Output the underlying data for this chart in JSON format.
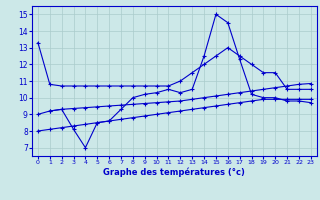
{
  "xlabel": "Graphe des températures (°c)",
  "background_color": "#cce8e8",
  "line_color": "#0000cc",
  "grid_color": "#aacccc",
  "xlim": [
    -0.5,
    23.5
  ],
  "ylim": [
    6.5,
    15.5
  ],
  "xticks": [
    0,
    1,
    2,
    3,
    4,
    5,
    6,
    7,
    8,
    9,
    10,
    11,
    12,
    13,
    14,
    15,
    16,
    17,
    18,
    19,
    20,
    21,
    22,
    23
  ],
  "yticks": [
    7,
    8,
    9,
    10,
    11,
    12,
    13,
    14,
    15
  ],
  "series": [
    {
      "x": [
        0,
        1,
        2,
        3,
        4,
        5,
        6,
        7,
        8,
        9,
        10,
        11,
        12,
        13,
        14,
        15,
        16,
        17,
        18,
        19,
        20,
        21,
        22,
        23
      ],
      "y": [
        13.3,
        10.8,
        10.7,
        10.7,
        10.7,
        10.7,
        10.7,
        10.7,
        10.7,
        10.7,
        10.7,
        10.7,
        11.0,
        11.5,
        12.0,
        12.5,
        13.0,
        12.5,
        12.0,
        11.5,
        11.5,
        10.5,
        10.5,
        10.5
      ]
    },
    {
      "x": [
        1,
        2,
        3,
        4,
        5,
        6,
        7,
        8,
        9,
        10,
        11,
        12,
        13,
        14,
        15,
        16,
        17,
        18,
        19,
        20,
        21,
        22,
        23
      ],
      "y": [
        9.2,
        9.3,
        8.1,
        7.0,
        8.5,
        8.6,
        9.3,
        10.0,
        10.2,
        10.3,
        10.5,
        10.3,
        10.5,
        12.5,
        15.0,
        14.5,
        12.3,
        10.2,
        10.0,
        10.0,
        9.8,
        9.8,
        9.7
      ]
    },
    {
      "x": [
        0,
        1,
        2,
        3,
        4,
        5,
        6,
        7,
        8,
        9,
        10,
        11,
        12,
        13,
        14,
        15,
        16,
        17,
        18,
        19,
        20,
        21,
        22,
        23
      ],
      "y": [
        9.0,
        9.2,
        9.3,
        9.35,
        9.4,
        9.45,
        9.5,
        9.55,
        9.6,
        9.65,
        9.7,
        9.75,
        9.8,
        9.9,
        10.0,
        10.1,
        10.2,
        10.3,
        10.4,
        10.5,
        10.6,
        10.7,
        10.8,
        10.85
      ]
    },
    {
      "x": [
        0,
        1,
        2,
        3,
        4,
        5,
        6,
        7,
        8,
        9,
        10,
        11,
        12,
        13,
        14,
        15,
        16,
        17,
        18,
        19,
        20,
        21,
        22,
        23
      ],
      "y": [
        8.0,
        8.1,
        8.2,
        8.3,
        8.4,
        8.5,
        8.6,
        8.7,
        8.8,
        8.9,
        9.0,
        9.1,
        9.2,
        9.3,
        9.4,
        9.5,
        9.6,
        9.7,
        9.8,
        9.9,
        9.9,
        9.9,
        9.9,
        9.9
      ]
    }
  ]
}
